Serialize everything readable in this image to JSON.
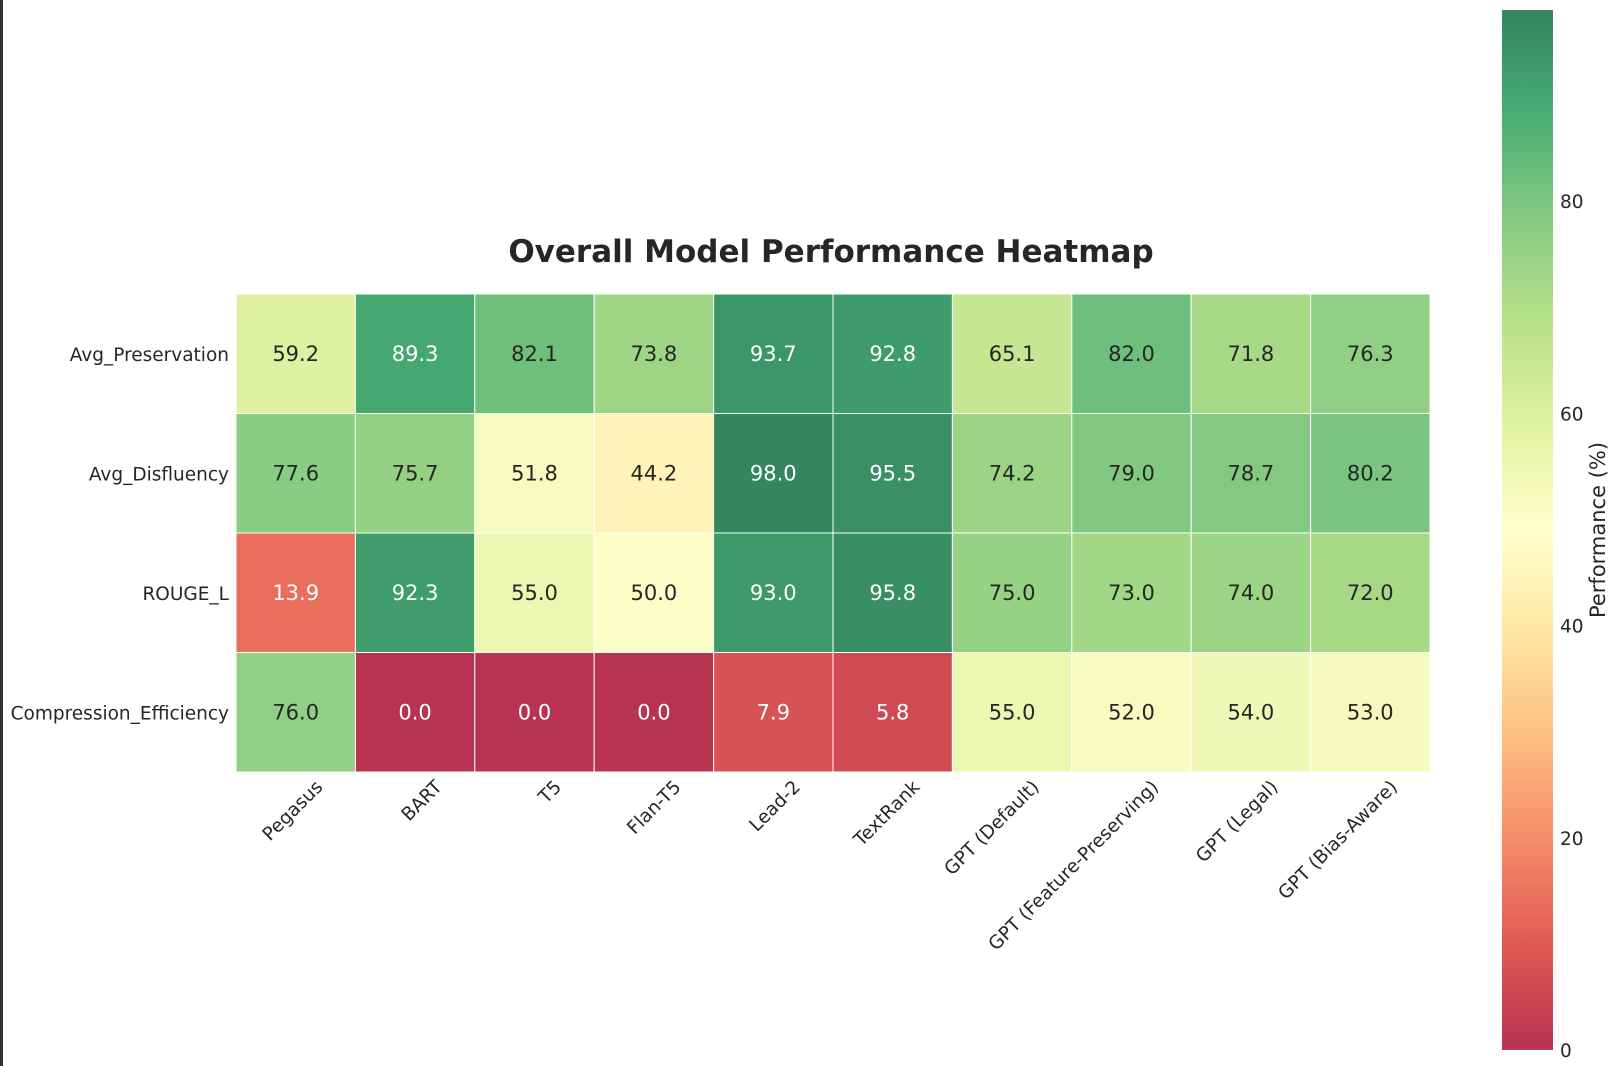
{
  "chart_data": {
    "type": "heatmap",
    "title": "Overall Model Performance Heatmap",
    "columns": [
      "Pegasus",
      "BART",
      "T5",
      "Flan-T5",
      "Lead-2",
      "TextRank",
      "GPT (Default)",
      "GPT (Feature-Preserving)",
      "GPT (Legal)",
      "GPT (Bias-Aware)"
    ],
    "rows": [
      "Avg_Preservation",
      "Avg_Disfluency",
      "ROUGE_L",
      "Compression_Efficiency"
    ],
    "values": [
      [
        59.2,
        89.3,
        82.1,
        73.8,
        93.7,
        92.8,
        65.1,
        82.0,
        71.8,
        76.3
      ],
      [
        77.6,
        75.7,
        51.8,
        44.2,
        98.0,
        95.5,
        74.2,
        79.0,
        78.7,
        80.2
      ],
      [
        13.9,
        92.3,
        55.0,
        50.0,
        93.0,
        95.8,
        75.0,
        73.0,
        74.0,
        72.0
      ],
      [
        76.0,
        0.0,
        0.0,
        0.0,
        7.9,
        5.8,
        55.0,
        52.0,
        54.0,
        53.0
      ]
    ],
    "colorbar": {
      "label": "Performance (%)",
      "range": [
        0,
        98
      ],
      "ticks": [
        0,
        20,
        40,
        60,
        80
      ],
      "colormap": "RdYlGn"
    },
    "grid": false,
    "legend": "colorbar-right"
  }
}
